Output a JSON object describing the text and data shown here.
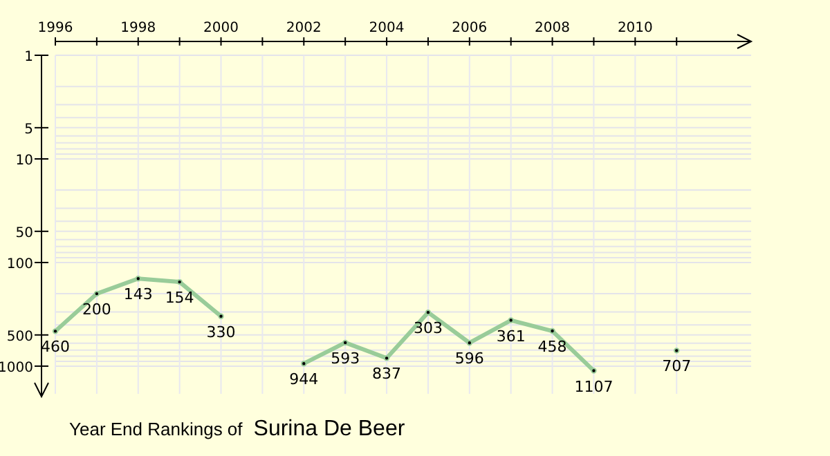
{
  "chart_data": {
    "type": "line",
    "title": "Year End Rankings of",
    "subtitle": "Surina De Beer",
    "x": [
      1996,
      1997,
      1998,
      1999,
      2000,
      2001,
      2002,
      2003,
      2004,
      2005,
      2006,
      2007,
      2008,
      2009,
      2010,
      2011
    ],
    "series": [
      {
        "color": "#99cc99",
        "values": [
          460,
          200,
          143,
          154,
          330,
          null,
          944,
          593,
          837,
          303,
          596,
          361,
          458,
          1107,
          null,
          707
        ]
      }
    ],
    "log": "y",
    "ylim": [
      1850,
      1
    ],
    "yticks": [
      1,
      {
        "value": 2,
        "label": null
      },
      {
        "value": 3,
        "label": null
      },
      {
        "value": 4,
        "label": null
      },
      5,
      {
        "value": 6,
        "label": null
      },
      {
        "value": 7,
        "label": null
      },
      {
        "value": 8,
        "label": null
      },
      {
        "value": 9,
        "label": null
      },
      10,
      {
        "value": 20,
        "label": null
      },
      {
        "value": 30,
        "label": null
      },
      {
        "value": 40,
        "label": null
      },
      50,
      {
        "value": 60,
        "label": null
      },
      {
        "value": 70,
        "label": null
      },
      {
        "value": 80,
        "label": null
      },
      {
        "value": 90,
        "label": null
      },
      100,
      {
        "value": 200,
        "label": null
      },
      {
        "value": 300,
        "label": null
      },
      {
        "value": 400,
        "label": null
      },
      500,
      {
        "value": 600,
        "label": null
      },
      {
        "value": 700,
        "label": null
      },
      {
        "value": 800,
        "label": null
      },
      {
        "value": 900,
        "label": null
      },
      1000
    ],
    "xlim": [
      1996,
      2012.8
    ],
    "xticks": [
      1996,
      {
        "value": 1997,
        "label": null
      },
      1998,
      {
        "value": 1999,
        "label": null
      },
      2000,
      {
        "value": 2001,
        "label": null
      },
      2002,
      {
        "value": 2003,
        "label": null
      },
      2004,
      {
        "value": 2005,
        "label": null
      },
      2006,
      {
        "value": 2007,
        "label": null
      },
      2008,
      {
        "value": 2009,
        "label": null
      },
      2010,
      {
        "value": 2011,
        "label": null
      }
    ],
    "grid": true,
    "marker": "circle",
    "line_style": "solid",
    "data_labels": true
  }
}
